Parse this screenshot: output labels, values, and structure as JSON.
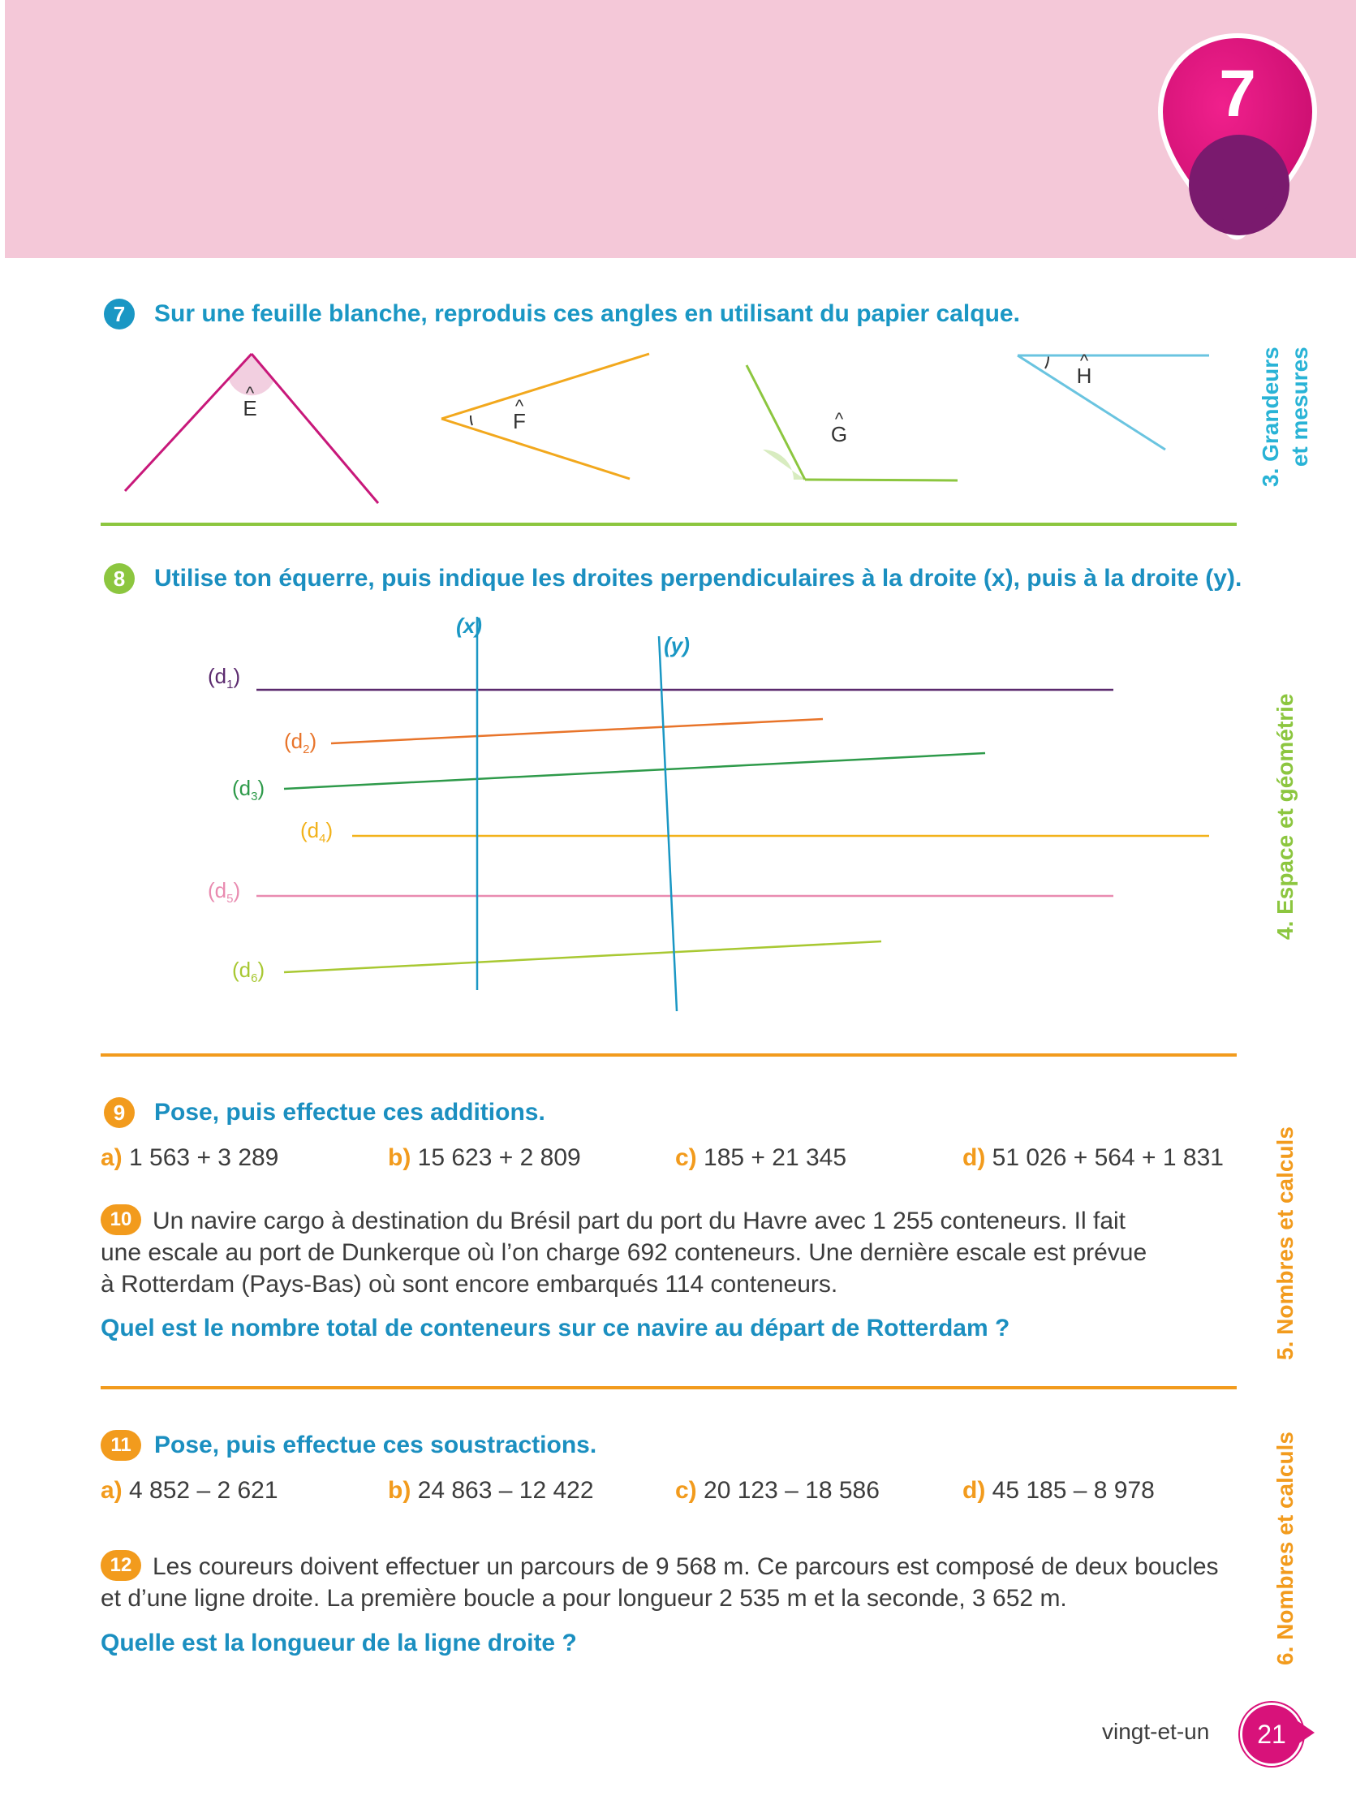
{
  "chapter": {
    "number": "7",
    "colors": {
      "pin": "#d8127a",
      "pin_inner": "#7a1a6e",
      "band": "#f4c8d8"
    }
  },
  "sidebar": {
    "tab1_line1": "3. Grandeurs",
    "tab1_line2": "et mesures",
    "tab2": "4. Espace et géométrie",
    "tab3": "5. Nombres et calculs",
    "tab4": "6. Nombres et calculs",
    "colors": {
      "tab1": "#29b3d6",
      "tab2": "#8cc63f",
      "tab3": "#f29b1d",
      "tab4": "#f29b1d"
    }
  },
  "ex7": {
    "number": "7",
    "instruction": "Sur une feuille blanche, reproduis ces angles en utilisant du papier calque.",
    "angles": [
      "Ê",
      "F̂",
      "Ĝ",
      "Ĥ"
    ],
    "angle_labels": {
      "E": "E",
      "F": "F",
      "G": "G",
      "H": "H",
      "hat": "^"
    }
  },
  "ex8": {
    "number": "8",
    "instruction": "Utilise ton équerre, puis indique les droites perpendiculaires à la droite (x), puis à la droite (y).",
    "line_x": "(x)",
    "line_y": "(y)",
    "lines": [
      {
        "name": "d",
        "sub": "1",
        "color": "#5b2a6e"
      },
      {
        "name": "d",
        "sub": "2",
        "color": "#e8742a"
      },
      {
        "name": "d",
        "sub": "3",
        "color": "#2e9a4a"
      },
      {
        "name": "d",
        "sub": "4",
        "color": "#f2b21b"
      },
      {
        "name": "d",
        "sub": "5",
        "color": "#e98bb0"
      },
      {
        "name": "d",
        "sub": "6",
        "color": "#a8c832"
      }
    ]
  },
  "ex9": {
    "number": "9",
    "instruction": "Pose, puis effectue ces additions.",
    "items": [
      {
        "label": "a)",
        "expr": "1 563 + 3 289"
      },
      {
        "label": "b)",
        "expr": "15 623 + 2 809"
      },
      {
        "label": "c)",
        "expr": "185 + 21 345"
      },
      {
        "label": "d)",
        "expr": "51 026 + 564 + 1 831"
      }
    ]
  },
  "ex10": {
    "number": "10",
    "line1": "Un navire cargo à destination du Brésil part du port du Havre avec 1 255 conteneurs. Il fait",
    "line2": "une escale au port de Dunkerque où l’on charge 692 conteneurs. Une dernière escale est prévue",
    "line3": "à Rotterdam (Pays-Bas) où sont encore embarqués 114 conteneurs.",
    "question": "Quel est le nombre total de conteneurs sur ce navire au départ de Rotterdam ?"
  },
  "ex11": {
    "number": "11",
    "instruction": "Pose, puis effectue ces soustractions.",
    "items": [
      {
        "label": "a)",
        "expr": "4 852 – 2 621"
      },
      {
        "label": "b)",
        "expr": "24 863 – 12 422"
      },
      {
        "label": "c)",
        "expr": "20 123 – 18 586"
      },
      {
        "label": "d)",
        "expr": "45 185 – 8 978"
      }
    ]
  },
  "ex12": {
    "number": "12",
    "line1": "Les coureurs doivent effectuer un parcours de 9 568 m. Ce parcours est composé de deux boucles",
    "line2": "et d’une ligne droite. La première boucle a pour longueur 2 535 m et la seconde, 3 652 m.",
    "question": "Quelle est la longueur de la ligne droite ?"
  },
  "footer": {
    "page_words": "vingt-et-un",
    "page_number": "21"
  }
}
